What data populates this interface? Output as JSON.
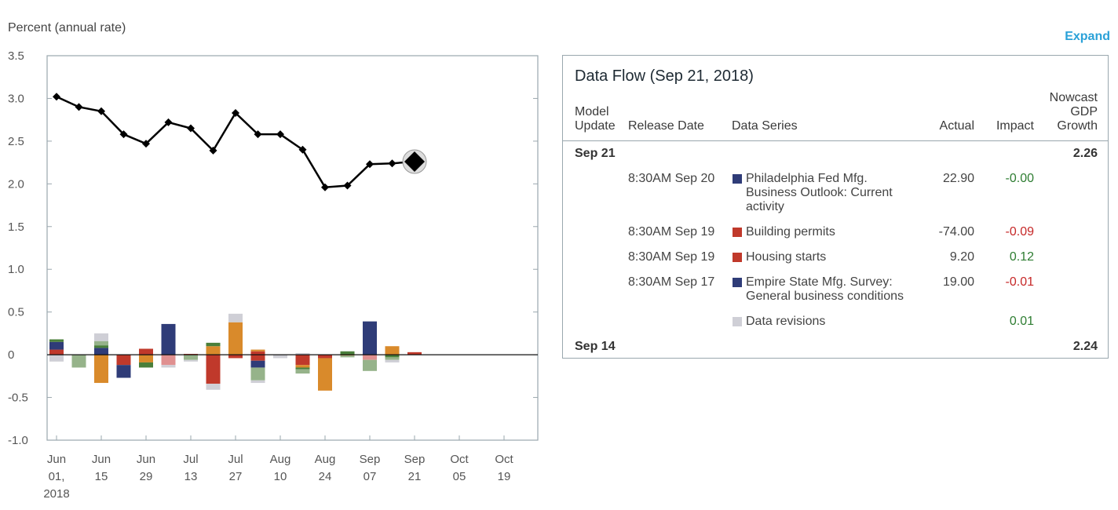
{
  "chart_data": {
    "type": "line+stacked-bar",
    "ylabel": "Percent (annual rate)",
    "ylim": [
      -1.0,
      3.5
    ],
    "yticks": [
      "3.5",
      "3.0",
      "2.5",
      "2.0",
      "1.5",
      "1.0",
      "0.5",
      "0",
      "-0.5",
      "-1.0"
    ],
    "ytick_values": [
      3.5,
      3.0,
      2.5,
      2.0,
      1.5,
      1.0,
      0.5,
      0,
      -0.5,
      -1.0
    ],
    "xtick_labels": [
      [
        "Jun",
        "01,",
        "2018"
      ],
      [
        "Jun",
        "15"
      ],
      [
        "Jun",
        "29"
      ],
      [
        "Jul",
        "13"
      ],
      [
        "Jul",
        "27"
      ],
      [
        "Aug",
        "10"
      ],
      [
        "Aug",
        "24"
      ],
      [
        "Sep",
        "07"
      ],
      [
        "Sep",
        "21"
      ],
      [
        "Oct",
        "05"
      ],
      [
        "Oct",
        "19"
      ]
    ],
    "nowcast_line": {
      "weeks": [
        0,
        1,
        2,
        3,
        4,
        5,
        6,
        7,
        8,
        9,
        10,
        11,
        12,
        13,
        14,
        15,
        16
      ],
      "values": [
        3.02,
        2.9,
        2.85,
        2.58,
        2.47,
        2.72,
        2.65,
        2.39,
        2.83,
        2.58,
        2.58,
        2.4,
        1.96,
        1.98,
        2.23,
        2.24,
        2.26
      ]
    },
    "latest_marker": {
      "week": 16,
      "value": 2.26
    },
    "impact_bars": [
      {
        "week": 0,
        "segments": [
          {
            "color": "#c0392b",
            "value": 0.06
          },
          {
            "color": "#2f3c78",
            "value": 0.09
          },
          {
            "color": "#4a7f3a",
            "value": 0.03
          },
          {
            "color": "#cfcfd6",
            "value": -0.08
          }
        ]
      },
      {
        "week": 1,
        "segments": [
          {
            "color": "#96b38a",
            "value": -0.15
          }
        ]
      },
      {
        "week": 2,
        "segments": [
          {
            "color": "#2f3c78",
            "value": 0.08
          },
          {
            "color": "#4a7f3a",
            "value": 0.03
          },
          {
            "color": "#96b38a",
            "value": 0.05
          },
          {
            "color": "#cfcfd6",
            "value": 0.09
          },
          {
            "color": "#d98a2b",
            "value": -0.33
          }
        ]
      },
      {
        "week": 3,
        "segments": [
          {
            "color": "#c0392b",
            "value": -0.12
          },
          {
            "color": "#2f3c78",
            "value": -0.15
          }
        ]
      },
      {
        "week": 4,
        "segments": [
          {
            "color": "#c0392b",
            "value": 0.07
          },
          {
            "color": "#d98a2b",
            "value": -0.09
          },
          {
            "color": "#4a7f3a",
            "value": -0.06
          }
        ]
      },
      {
        "week": 5,
        "segments": [
          {
            "color": "#2f3c78",
            "value": 0.36
          },
          {
            "color": "#e09090",
            "value": -0.12
          },
          {
            "color": "#cfcfd6",
            "value": -0.03
          }
        ]
      },
      {
        "week": 6,
        "segments": [
          {
            "color": "#c0392b",
            "value": 0.01
          },
          {
            "color": "#96b38a",
            "value": -0.06
          },
          {
            "color": "#cfcfd6",
            "value": -0.02
          }
        ]
      },
      {
        "week": 7,
        "segments": [
          {
            "color": "#d98a2b",
            "value": 0.1
          },
          {
            "color": "#4a7f3a",
            "value": 0.04
          },
          {
            "color": "#c0392b",
            "value": -0.34
          },
          {
            "color": "#cfcfd6",
            "value": -0.07
          }
        ]
      },
      {
        "week": 8,
        "segments": [
          {
            "color": "#d98a2b",
            "value": 0.38
          },
          {
            "color": "#cfcfd6",
            "value": 0.1
          },
          {
            "color": "#c0392b",
            "value": -0.04
          }
        ]
      },
      {
        "week": 9,
        "segments": [
          {
            "color": "#c0392b",
            "value": 0.04
          },
          {
            "color": "#d98a2b",
            "value": 0.02
          },
          {
            "color": "#c0392b",
            "value": -0.07
          },
          {
            "color": "#2f3c78",
            "value": -0.08
          },
          {
            "color": "#96b38a",
            "value": -0.15
          },
          {
            "color": "#cfcfd6",
            "value": -0.03
          }
        ]
      },
      {
        "week": 10,
        "segments": [
          {
            "color": "#cfcfd6",
            "value": -0.04
          }
        ]
      },
      {
        "week": 11,
        "segments": [
          {
            "color": "#cfcfd6",
            "value": 0.02
          },
          {
            "color": "#c0392b",
            "value": -0.12
          },
          {
            "color": "#d98a2b",
            "value": -0.03
          },
          {
            "color": "#4a7f3a",
            "value": -0.02
          },
          {
            "color": "#96b38a",
            "value": -0.05
          }
        ]
      },
      {
        "week": 12,
        "segments": [
          {
            "color": "#c0392b",
            "value": -0.04
          },
          {
            "color": "#d98a2b",
            "value": -0.38
          }
        ]
      },
      {
        "week": 13,
        "segments": [
          {
            "color": "#4a7f3a",
            "value": 0.04
          },
          {
            "color": "#d98a2b",
            "value": -0.01
          },
          {
            "color": "#96b38a",
            "value": -0.02
          }
        ]
      },
      {
        "week": 14,
        "segments": [
          {
            "color": "#2f3c78",
            "value": 0.39
          },
          {
            "color": "#e09090",
            "value": -0.06
          },
          {
            "color": "#96b38a",
            "value": -0.13
          }
        ]
      },
      {
        "week": 15,
        "segments": [
          {
            "color": "#d98a2b",
            "value": 0.1
          },
          {
            "color": "#4a7f3a",
            "value": -0.03
          },
          {
            "color": "#96b38a",
            "value": -0.03
          },
          {
            "color": "#cfcfd6",
            "value": -0.03
          }
        ]
      },
      {
        "week": 16,
        "segments": [
          {
            "color": "#c0392b",
            "value": 0.03
          }
        ]
      }
    ]
  },
  "expand_label": "Expand",
  "panel": {
    "title": "Data Flow (Sep 21, 2018)",
    "headers": {
      "model_update": [
        "Model",
        "Update"
      ],
      "release_date": "Release Date",
      "data_series": "Data Series",
      "actual": "Actual",
      "impact": "Impact",
      "nowcast": [
        "Nowcast",
        "GDP",
        "Growth"
      ]
    },
    "groups": [
      {
        "date": "Sep 21",
        "value": "2.26"
      },
      {
        "date": "Sep 14",
        "value": "2.24"
      }
    ],
    "rows": [
      {
        "release": "8:30AM Sep 20",
        "series": [
          "Philadelphia Fed Mfg.",
          "Business Outlook: Current",
          "activity"
        ],
        "color": "#2f3c78",
        "actual": "22.90",
        "impact": "-0.00",
        "sign": "pos"
      },
      {
        "release": "8:30AM Sep 19",
        "series": [
          "Building permits"
        ],
        "color": "#c0392b",
        "actual": "-74.00",
        "impact": "-0.09",
        "sign": "neg"
      },
      {
        "release": "8:30AM Sep 19",
        "series": [
          "Housing starts"
        ],
        "color": "#c0392b",
        "actual": "9.20",
        "impact": "0.12",
        "sign": "pos"
      },
      {
        "release": "8:30AM Sep 17",
        "series": [
          "Empire State Mfg. Survey:",
          "General business conditions"
        ],
        "color": "#2f3c78",
        "actual": "19.00",
        "impact": "-0.01",
        "sign": "neg"
      },
      {
        "release": "",
        "series": [
          "Data revisions"
        ],
        "color": "#cfcfd6",
        "actual": "",
        "impact": "0.01",
        "sign": "pos"
      }
    ]
  }
}
